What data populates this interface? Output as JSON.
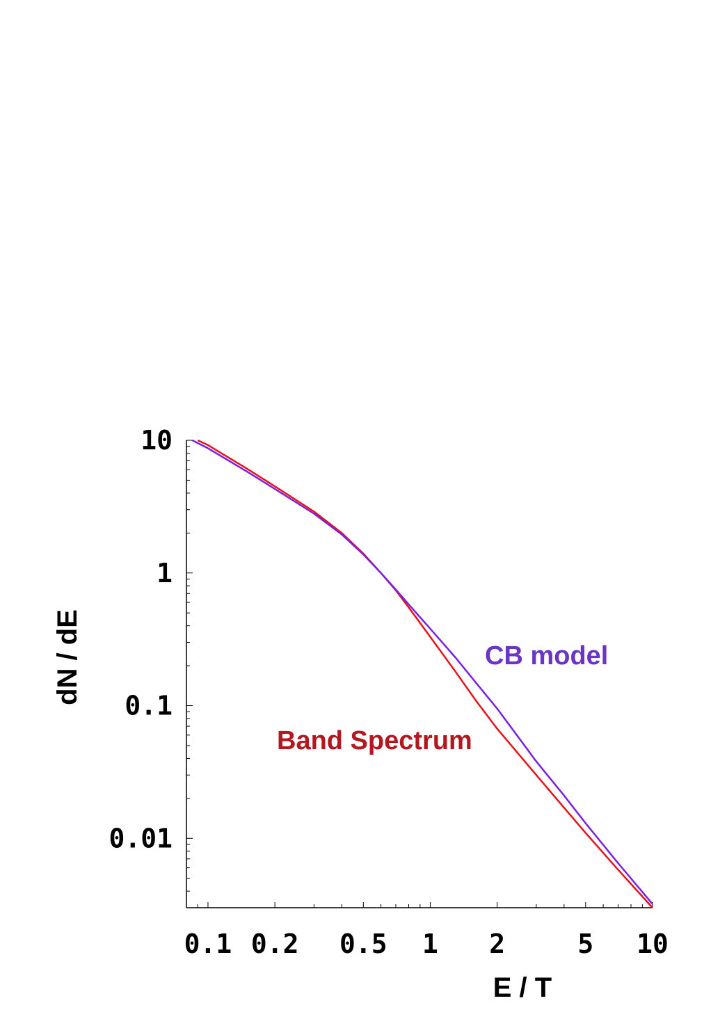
{
  "chart_data": {
    "type": "line",
    "xscale": "log",
    "yscale": "log",
    "xlabel": "E / T",
    "ylabel": "dN / dE",
    "xlim": [
      0.08,
      10
    ],
    "ylim": [
      0.003,
      10
    ],
    "xticks": [
      {
        "value": 0.1,
        "label": "0.1"
      },
      {
        "value": 0.2,
        "label": "0.2"
      },
      {
        "value": 0.5,
        "label": "0.5"
      },
      {
        "value": 1,
        "label": "1"
      },
      {
        "value": 2,
        "label": "2"
      },
      {
        "value": 5,
        "label": "5"
      },
      {
        "value": 10,
        "label": "10"
      }
    ],
    "yticks": [
      {
        "value": 10,
        "label": "10"
      },
      {
        "value": 1,
        "label": "1"
      },
      {
        "value": 0.1,
        "label": "0.1"
      },
      {
        "value": 0.01,
        "label": "0.01"
      }
    ],
    "grid": false,
    "series": [
      {
        "name": "Band Spectrum",
        "color": "#e8111a",
        "label_color": "#b4181f",
        "x": [
          0.09,
          0.1,
          0.15,
          0.2,
          0.3,
          0.4,
          0.5,
          0.6,
          0.7,
          0.8,
          1.0,
          1.3,
          1.6,
          2.0,
          3.0,
          4.0,
          5.0,
          7.0,
          10.0
        ],
        "y": [
          10.0,
          9.2,
          6.1,
          4.5,
          2.9,
          2.0,
          1.4,
          1.0,
          0.74,
          0.55,
          0.33,
          0.18,
          0.11,
          0.067,
          0.03,
          0.017,
          0.011,
          0.0058,
          0.003
        ]
      },
      {
        "name": "CB model",
        "color": "#7a1fe6",
        "label_color": "#6a34c4",
        "x": [
          0.085,
          0.1,
          0.15,
          0.2,
          0.3,
          0.4,
          0.5,
          0.6,
          0.7,
          0.8,
          1.0,
          1.3,
          1.6,
          2.0,
          3.0,
          4.0,
          5.0,
          7.0,
          10.0
        ],
        "y": [
          10.0,
          8.7,
          5.8,
          4.3,
          2.8,
          1.95,
          1.38,
          1.0,
          0.75,
          0.58,
          0.38,
          0.23,
          0.15,
          0.095,
          0.038,
          0.021,
          0.013,
          0.0065,
          0.0032
        ]
      }
    ]
  }
}
